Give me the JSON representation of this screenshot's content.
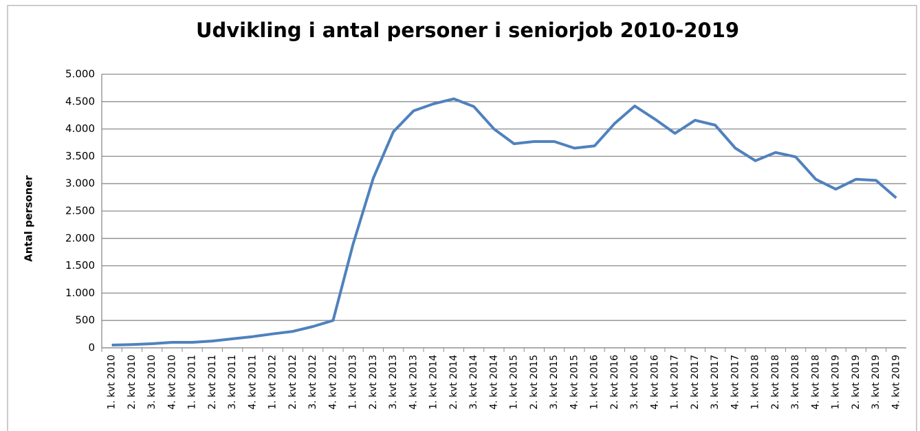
{
  "chart_data": {
    "type": "line",
    "title": "Udvikling i antal personer i seniorjob 2010-2019",
    "y_label": "Antal personer",
    "categories": [
      "1. kvt 2010",
      "2. kvt 2010",
      "3. kvt 2010",
      "4. kvt 2010",
      "1. kvt 2011",
      "2. kvt 2011",
      "3. kvt 2011",
      "4. kvt 2011",
      "1. kvt 2012",
      "2. kvt 2012",
      "3. kvt 2012",
      "4. kvt 2012",
      "1. kvt 2013",
      "2. kvt 2013",
      "3. kvt 2013",
      "4. kvt 2013",
      "1. kvt 2014",
      "2. kvt 2014",
      "3. kvt 2014",
      "4. kvt 2014",
      "1. kvt 2015",
      "2. kvt 2015",
      "3. kvt 2015",
      "4. kvt 2015",
      "1. kvt 2016",
      "2. kvt 2016",
      "3. kvt 2016",
      "4. kvt 2016",
      "1. kvt 2017",
      "2. kvt 2017",
      "3. kvt 2017",
      "4. kvt 2017",
      "1. kvt 2018",
      "2. kvt 2018",
      "3. kvt 2018",
      "4. kvt 2018",
      "1. kvt 2019",
      "2. kvt 2019",
      "3. kvt 2019",
      "4. kvt 2019"
    ],
    "values": [
      50,
      60,
      75,
      100,
      100,
      125,
      165,
      205,
      255,
      300,
      390,
      500,
      1900,
      3100,
      3950,
      4330,
      4460,
      4550,
      4410,
      4000,
      3730,
      3770,
      3770,
      3650,
      3690,
      4100,
      4420,
      4180,
      3920,
      4160,
      4070,
      3650,
      3420,
      3570,
      3490,
      3080,
      2900,
      3080,
      3060,
      2740
    ],
    "color": "#4f81bd",
    "ylim": [
      0,
      5000
    ],
    "yticks": [
      0,
      500,
      {
        "value": 1000,
        "label": "1.000"
      },
      {
        "value": 1500,
        "label": "1.500"
      },
      {
        "value": 2000,
        "label": "2.000"
      },
      {
        "value": 2500,
        "label": "2.500"
      },
      {
        "value": 3000,
        "label": "3.000"
      },
      {
        "value": 3500,
        "label": "3.500"
      },
      {
        "value": 4000,
        "label": "4.000"
      },
      {
        "value": 4500,
        "label": "4.500"
      },
      {
        "value": 5000,
        "label": "5.000"
      }
    ],
    "grid": true
  }
}
